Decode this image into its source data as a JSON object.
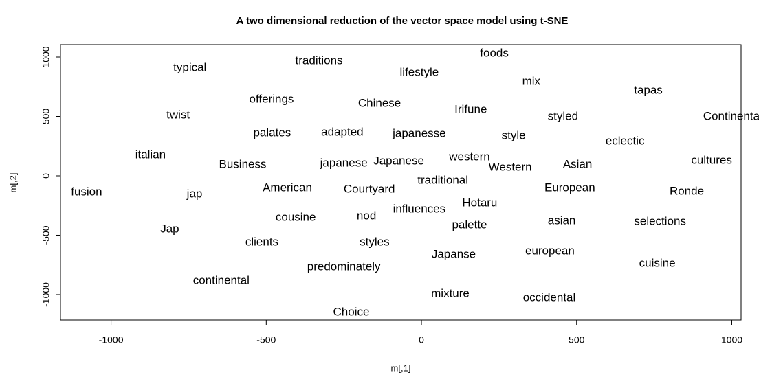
{
  "chart_data": {
    "type": "scatter",
    "title": "A two dimensional reduction of the vector space model using t-SNE",
    "x_label": "m[,1]",
    "y_label": "m[,2]",
    "labels": [
      "foods",
      "traditions",
      "typical",
      "lifestyle",
      "mix",
      "tapas",
      "offerings",
      "Chinese",
      "Irifune",
      "twist",
      "styled",
      "Continental",
      "palates",
      "adapted",
      "japanesse",
      "style",
      "eclectic",
      "italian",
      "western",
      "japanese",
      "Japanese",
      "Business",
      "Western",
      "Asian",
      "cultures",
      "traditional",
      "American",
      "Courtyard",
      "European",
      "fusion",
      "jap",
      "Ronde",
      "Hotaru",
      "influences",
      "nod",
      "cousine",
      "palette",
      "asian",
      "selections",
      "Jap",
      "clients",
      "styles",
      "Japanse",
      "european",
      "cuisine",
      "predominately",
      "continental",
      "mixture",
      "occidental",
      "Choice"
    ],
    "x": [
      235,
      -330,
      -746,
      -7,
      354,
      731,
      -483,
      -135,
      159,
      -784,
      456,
      1003,
      -481,
      -255,
      -7,
      297,
      656,
      -873,
      155,
      -250,
      -73,
      -576,
      286,
      503,
      935,
      69,
      -432,
      -168,
      478,
      -1079,
      -731,
      855,
      188,
      -7,
      -177,
      -405,
      155,
      452,
      769,
      -811,
      -514,
      -151,
      104,
      414,
      760,
      -250,
      -645,
      93,
      412,
      -226
    ],
    "y": [
      1029,
      965,
      908,
      867,
      792,
      717,
      642,
      607,
      555,
      509,
      497,
      497,
      358,
      364,
      353,
      335,
      289,
      173,
      156,
      104,
      121,
      92,
      69,
      92,
      127,
      -40,
      -104,
      -116,
      -104,
      -139,
      -156,
      -133,
      -231,
      -283,
      -341,
      -353,
      -416,
      -382,
      -387,
      -451,
      -561,
      -561,
      -665,
      -636,
      -740,
      -769,
      -884,
      -994,
      -1029,
      -1150
    ],
    "xlim": [
      -1163,
      1030
    ],
    "ylim": [
      -1214,
      1104
    ],
    "xticks": [
      -1000,
      -500,
      0,
      500,
      1000
    ],
    "yticks": [
      -1000,
      -500,
      0,
      500,
      1000
    ],
    "grid": false
  }
}
